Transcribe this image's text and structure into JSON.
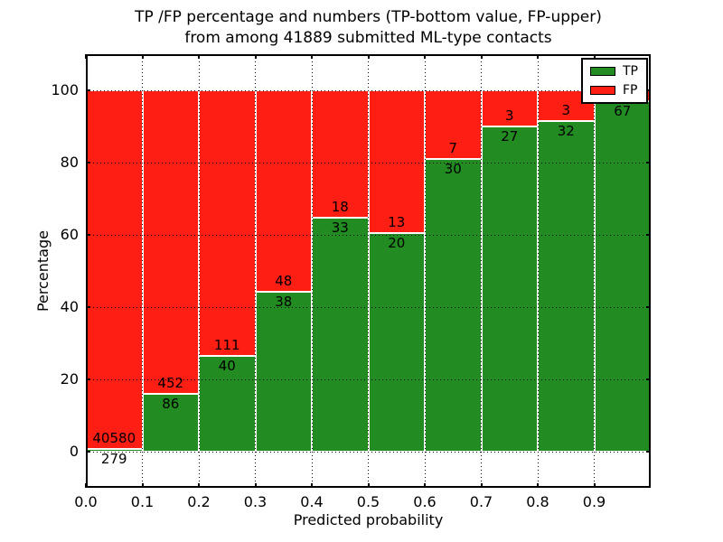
{
  "figure": {
    "title_line1": "TP /FP percentage and numbers (TP-bottom value, FP-upper)",
    "title_line2": "from among 41889 submitted ML-type contacts",
    "xlabel": "Predicted probability",
    "ylabel": "Percentage"
  },
  "legend": {
    "position": "upper right",
    "items": [
      {
        "label": "TP",
        "color": "#228b22"
      },
      {
        "label": "FP",
        "color": "#ff1e14"
      }
    ]
  },
  "colors": {
    "tp_green": "#228b22",
    "fp_red": "#ff1e14",
    "grid": "#000000",
    "bar_edge": "#ffffff"
  },
  "chart_data": {
    "type": "bar",
    "stacked": true,
    "values_unit": "percent",
    "title": "TP /FP percentage and numbers (TP-bottom value, FP-upper) from among 41889 submitted ML-type contacts",
    "xlabel": "Predicted probability",
    "ylabel": "Percentage",
    "total_submitted": 41889,
    "bins": [
      "0.0-0.1",
      "0.1-0.2",
      "0.2-0.3",
      "0.3-0.4",
      "0.4-0.5",
      "0.5-0.6",
      "0.6-0.7",
      "0.7-0.8",
      "0.8-0.9",
      "0.9-1.0"
    ],
    "series": [
      {
        "name": "TP",
        "color": "#228b22",
        "counts": [
          279,
          86,
          40,
          38,
          33,
          20,
          30,
          27,
          32,
          67
        ],
        "pct": [
          0.68,
          15.99,
          26.49,
          44.19,
          64.71,
          60.61,
          81.08,
          90.0,
          91.43,
          97.1
        ]
      },
      {
        "name": "FP",
        "color": "#ff1e14",
        "counts": [
          40580,
          452,
          111,
          48,
          18,
          13,
          7,
          3,
          3,
          null
        ],
        "pct": [
          99.32,
          84.01,
          73.51,
          55.81,
          35.29,
          39.39,
          18.92,
          10.0,
          8.57,
          2.9
        ]
      }
    ],
    "bar_labels": {
      "tp": [
        "279",
        "86",
        "40",
        "38",
        "33",
        "20",
        "30",
        "27",
        "32",
        "67"
      ],
      "fp": [
        "40580",
        "452",
        "111",
        "48",
        "18",
        "13",
        "7",
        "3",
        "3",
        ""
      ]
    },
    "x_ticks": [
      "0.0",
      "0.1",
      "0.2",
      "0.3",
      "0.4",
      "0.5",
      "0.6",
      "0.7",
      "0.8",
      "0.9"
    ],
    "y_ticks": [
      "0",
      "20",
      "40",
      "60",
      "80",
      "100"
    ],
    "y_tick_values": [
      0,
      20,
      40,
      60,
      80,
      100
    ],
    "xlim": [
      0.0,
      1.0
    ],
    "ylim": [
      -10,
      110
    ],
    "grid": true,
    "legend_position": "upper right"
  }
}
